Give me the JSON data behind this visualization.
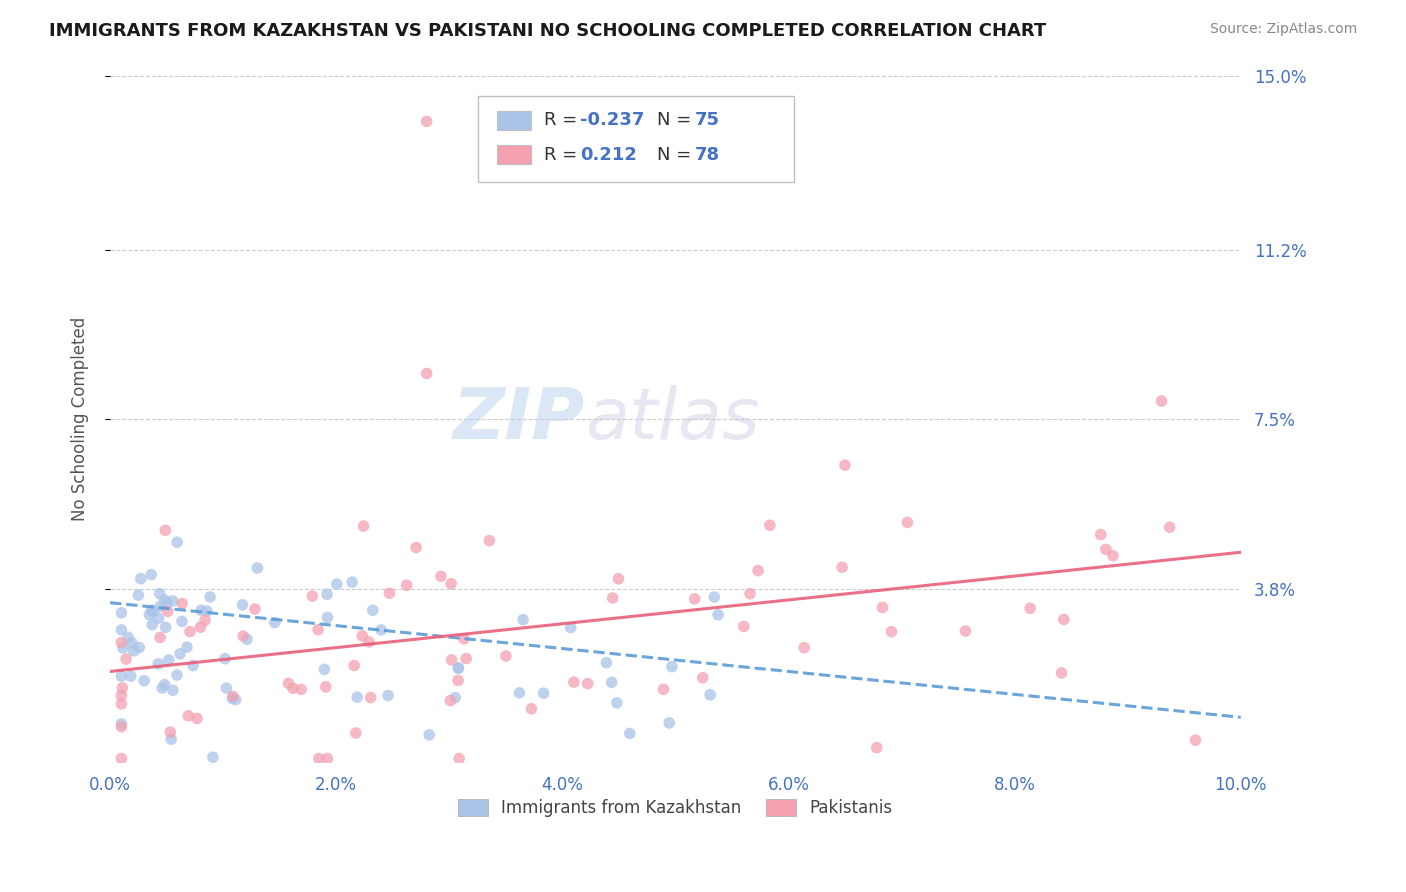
{
  "title": "IMMIGRANTS FROM KAZAKHSTAN VS PAKISTANI NO SCHOOLING COMPLETED CORRELATION CHART",
  "source": "Source: ZipAtlas.com",
  "ylabel": "No Schooling Completed",
  "xlim": [
    0.0,
    0.1
  ],
  "ylim": [
    0.0,
    0.15
  ],
  "xticks": [
    0.0,
    0.02,
    0.04,
    0.06,
    0.08,
    0.1
  ],
  "xtick_labels": [
    "0.0%",
    "2.0%",
    "4.0%",
    "6.0%",
    "8.0%",
    "10.0%"
  ],
  "ytick_positions": [
    0.038,
    0.075,
    0.112,
    0.15
  ],
  "ytick_labels": [
    "3.8%",
    "7.5%",
    "11.2%",
    "15.0%"
  ],
  "grid_color": "#cccccc",
  "background_color": "#ffffff",
  "series1_color": "#aac4e8",
  "series2_color": "#f4a0b0",
  "series1_label": "Immigrants from Kazakhstan",
  "series2_label": "Pakistanis",
  "line1_color": "#5b9bd5",
  "line2_color": "#e8607a",
  "title_color": "#1a1a1a",
  "tick_label_color": "#4472c4",
  "r_color": "#4472c4",
  "n_color": "#4472c4",
  "line1_start_y": 0.035,
  "line1_end_y": 0.01,
  "line2_start_y": 0.02,
  "line2_end_y": 0.046,
  "watermark_zip_color": "#c8d8ec",
  "watermark_atlas_color": "#d8c8e8"
}
